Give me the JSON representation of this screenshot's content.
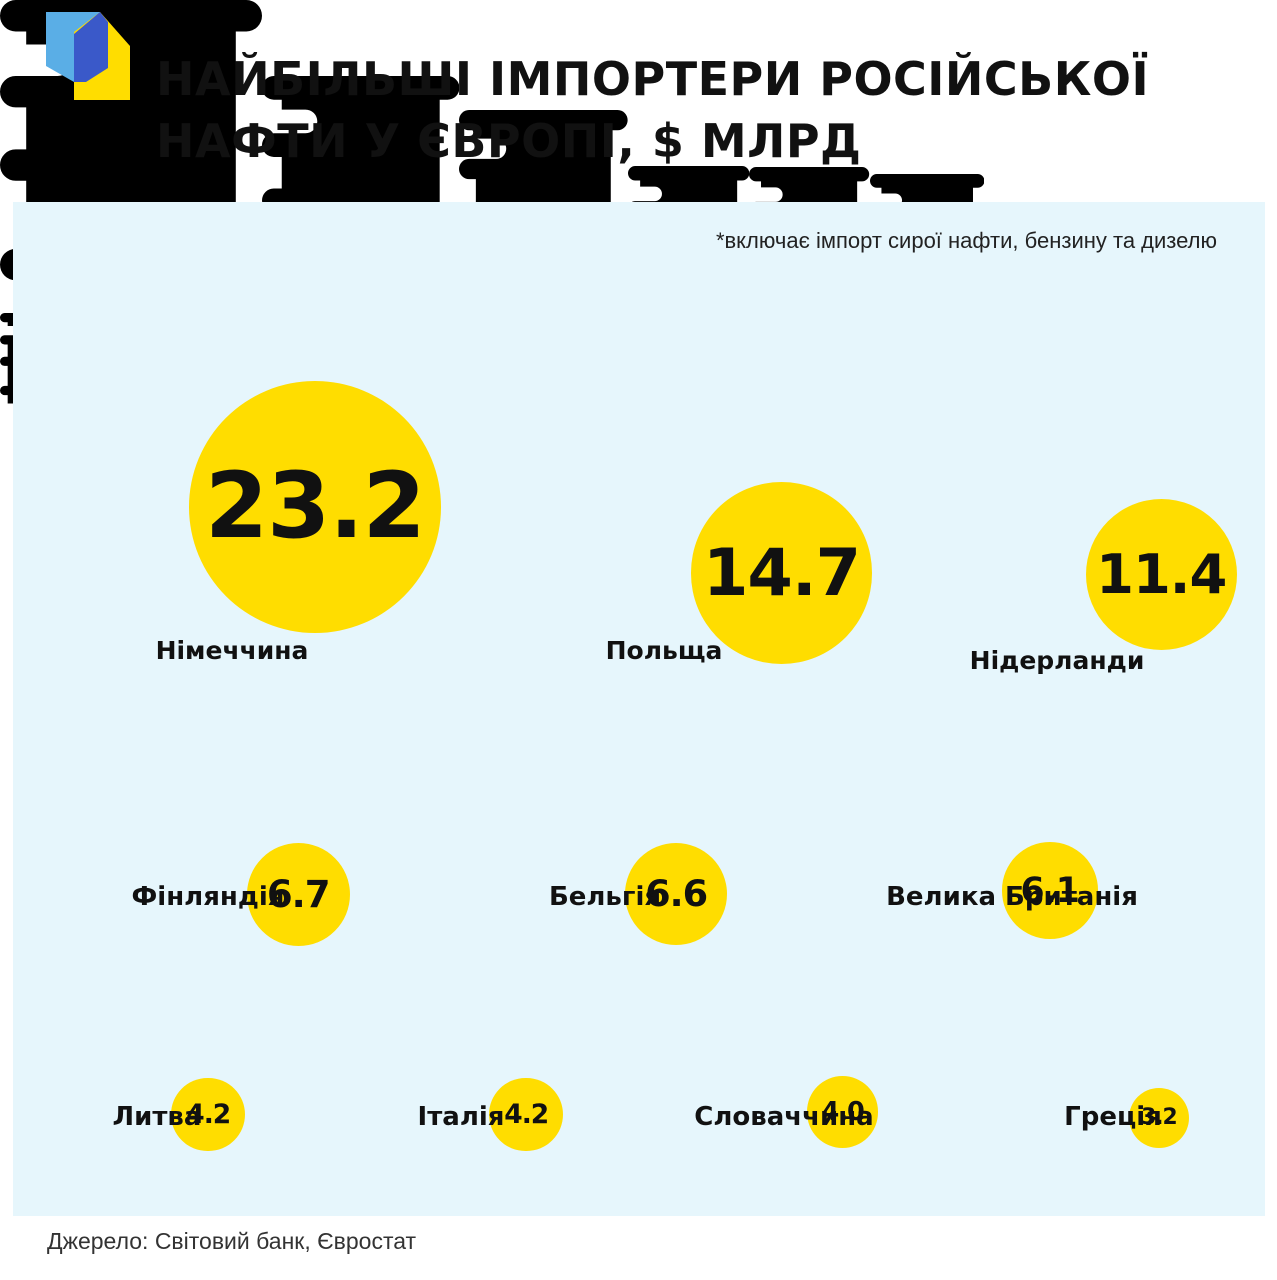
{
  "title": "НАЙБІЛЬШІ ІМПОРТЕРИ РОСІЙСЬКОЇ\nНАФТИ У ЄВРОПІ, $ МЛРД",
  "footnote": "*включає імпорт сирої нафти, бензину та дизелю",
  "source": "Джерело: Світовий банк, Євростат",
  "colors": {
    "accent_yellow": "#ffdd00",
    "barrel": "#000000",
    "panel_bg": "#e6f6fc",
    "logo_blue": "#3a59c9",
    "logo_light_blue": "#5aaee6"
  },
  "icons": {
    "logo": "logo-icon",
    "barrel": "oil-barrel-icon"
  },
  "chart_data": {
    "type": "bubble",
    "unit": "$ млрд",
    "categories": [
      "Німеччина",
      "Польща",
      "Нідерланди",
      "Фінляндія",
      "Бельгія",
      "Велика Британія",
      "Литва",
      "Італія",
      "Словаччина",
      "Греція"
    ],
    "values": [
      23.2,
      14.7,
      11.4,
      6.7,
      6.6,
      6.1,
      4.2,
      4.2,
      4.0,
      3.2
    ],
    "value_labels": [
      "23.2",
      "14.7",
      "11.4",
      "6.7",
      "6.6",
      "6.1",
      "4.2",
      "4.2",
      "4.0",
      "3.2"
    ]
  }
}
